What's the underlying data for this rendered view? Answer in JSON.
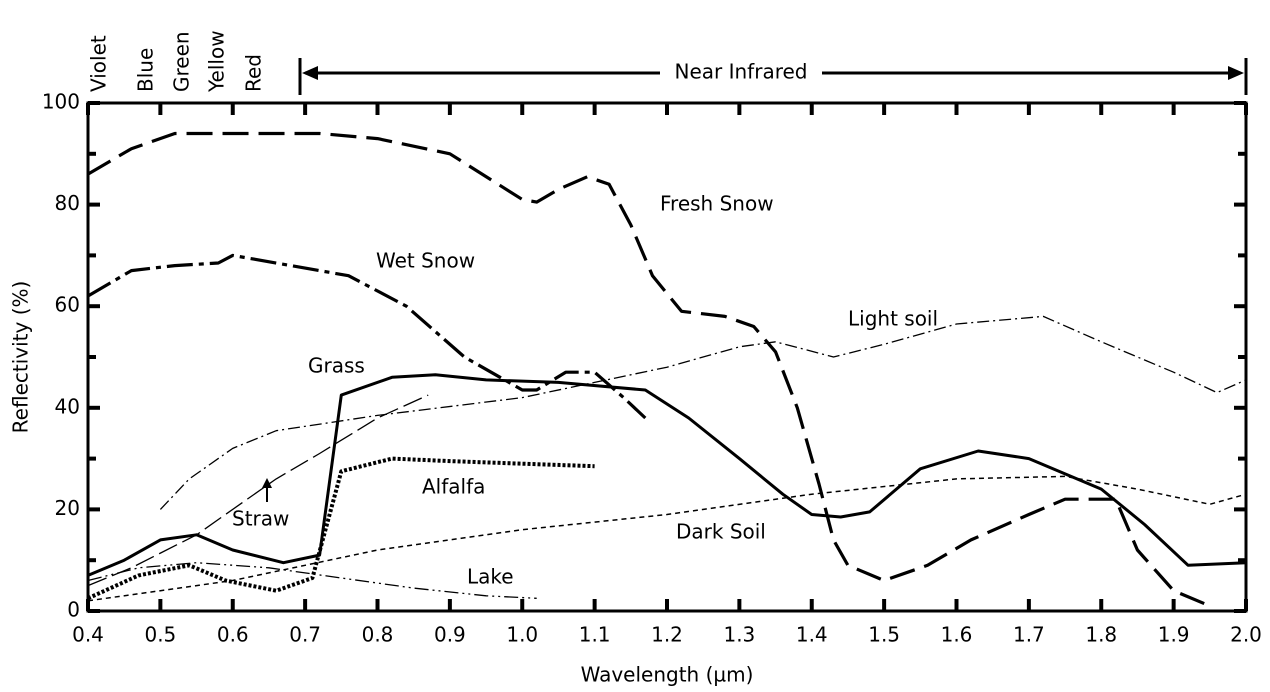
{
  "chart_data": {
    "type": "line",
    "xlabel": "Wavelength (µm)",
    "ylabel": "Reflectivity (%)",
    "bands": [
      "Violet",
      "Blue",
      "Green",
      "Yellow",
      "Red"
    ],
    "annotation": "Near Infrared",
    "xlim": [
      0.4,
      2.0
    ],
    "ylim": [
      0,
      100
    ],
    "xticks": [
      0.4,
      0.5,
      0.6,
      0.7,
      0.8,
      0.9,
      {
        "value": 1,
        "label": "1.0"
      },
      1.1,
      1.2,
      1.3,
      1.4,
      1.5,
      1.6,
      1.7,
      1.8,
      1.9,
      {
        "value": 2,
        "label": "2.0"
      }
    ],
    "yticks": [
      0,
      20,
      40,
      60,
      80,
      100
    ],
    "series": [
      {
        "name": "Fresh Snow",
        "color": "#000",
        "dash": "26,10",
        "width": 3.2,
        "x": [
          0.4,
          0.46,
          0.52,
          0.6,
          0.66,
          0.72,
          0.8,
          0.9,
          1.0,
          1.02,
          1.05,
          1.09,
          1.12,
          1.15,
          1.18,
          1.22,
          1.28,
          1.32,
          1.35,
          1.38,
          1.41,
          1.43,
          1.45,
          1.5,
          1.56,
          1.62,
          1.7,
          1.75,
          1.82,
          1.85,
          1.9,
          1.95
        ],
        "values": [
          86,
          91,
          94,
          94,
          94,
          94,
          93,
          90,
          81,
          80.5,
          83,
          85.5,
          84,
          76,
          66,
          59,
          58,
          56,
          51,
          40,
          25,
          14,
          9,
          6,
          9,
          14,
          19,
          22,
          22,
          12,
          4,
          1
        ]
      },
      {
        "name": "Wet Snow",
        "color": "#000",
        "dash": "26,6,5,6",
        "width": 3.2,
        "x": [
          0.4,
          0.46,
          0.52,
          0.58,
          0.6,
          0.7,
          0.76,
          0.84,
          0.92,
          1.0,
          1.02,
          1.06,
          1.1,
          1.14,
          1.17
        ],
        "values": [
          62,
          67,
          68,
          68.5,
          70,
          67.5,
          66,
          60,
          50,
          43.5,
          43.5,
          47,
          47,
          42,
          38
        ]
      },
      {
        "name": "Light soil",
        "color": "#000",
        "dash": "12,4,2,4",
        "width": 1.3,
        "x": [
          0.5,
          0.54,
          0.6,
          0.66,
          0.8,
          1.0,
          1.1,
          1.2,
          1.3,
          1.35,
          1.43,
          1.5,
          1.6,
          1.72,
          1.8,
          1.9,
          1.96,
          2.0
        ],
        "values": [
          20,
          26,
          32,
          35.5,
          38.5,
          42,
          45,
          48,
          52,
          53,
          50,
          52.5,
          56.5,
          58,
          53,
          47,
          43,
          45.5
        ]
      },
      {
        "name": "Grass",
        "color": "#000",
        "dash": "",
        "width": 3,
        "x": [
          0.4,
          0.45,
          0.5,
          0.55,
          0.6,
          0.67,
          0.72,
          0.75,
          0.82,
          0.88,
          0.95,
          1.05,
          1.17,
          1.23,
          1.3,
          1.36,
          1.4,
          1.44,
          1.48,
          1.55,
          1.63,
          1.7,
          1.8,
          1.86,
          1.92,
          2.0
        ],
        "values": [
          7,
          10,
          14,
          15,
          12,
          9.5,
          11,
          42.5,
          46,
          46.5,
          45.5,
          45,
          43.5,
          38,
          30,
          23,
          19,
          18.5,
          19.5,
          28,
          31.5,
          30,
          24,
          17,
          9,
          9.5
        ]
      },
      {
        "name": "Straw",
        "color": "#000",
        "dash": "20,6",
        "width": 1.3,
        "x": [
          0.4,
          0.46,
          0.55,
          0.62,
          0.66,
          0.72,
          0.8,
          0.87
        ],
        "values": [
          5,
          8.5,
          15,
          22,
          26,
          31,
          38,
          42.5
        ]
      },
      {
        "name": "Alfalfa",
        "color": "#000",
        "dash": "3,2",
        "width": 4,
        "x": [
          0.4,
          0.47,
          0.54,
          0.59,
          0.66,
          0.71,
          0.75,
          0.82,
          0.9,
          1.0,
          1.1
        ],
        "values": [
          2.5,
          7,
          9,
          6,
          4,
          6.5,
          27.5,
          30,
          29.5,
          29,
          28.5
        ]
      },
      {
        "name": "Dark Soil",
        "color": "#000",
        "dash": "5,4",
        "width": 1.5,
        "x": [
          0.4,
          0.5,
          0.6,
          0.7,
          0.8,
          1.0,
          1.2,
          1.4,
          1.6,
          1.75,
          1.85,
          1.95,
          2.0
        ],
        "values": [
          2,
          4,
          6,
          9,
          12,
          16,
          19,
          23,
          26,
          26.5,
          24,
          21,
          23
        ]
      },
      {
        "name": "Lake",
        "color": "#000",
        "dash": "14,4,2,4,2,4",
        "width": 1.3,
        "x": [
          0.4,
          0.47,
          0.55,
          0.65,
          0.75,
          0.85,
          0.95,
          1.02
        ],
        "values": [
          6,
          8.5,
          9.5,
          8.5,
          6.5,
          4.5,
          3,
          2.5
        ]
      }
    ]
  }
}
